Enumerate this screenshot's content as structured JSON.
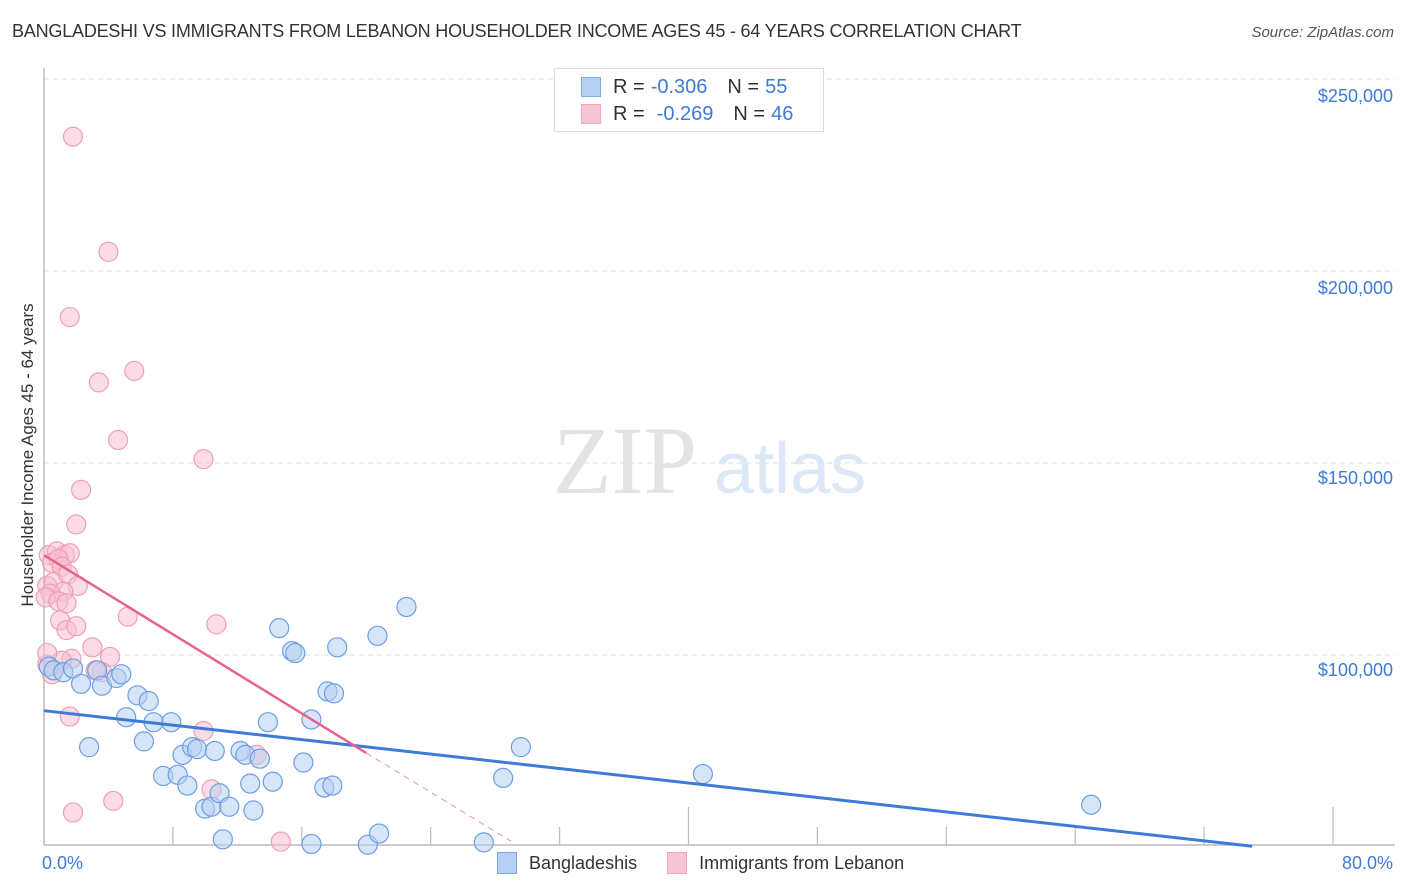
{
  "header": {
    "title": "BANGLADESHI VS IMMIGRANTS FROM LEBANON HOUSEHOLDER INCOME AGES 45 - 64 YEARS CORRELATION CHART",
    "source": "Source: ZipAtlas.com"
  },
  "watermark": {
    "zip": "ZIP",
    "atlas": "atlas"
  },
  "legend": {
    "series1": {
      "r_label": "R = ",
      "r_value": "-0.306",
      "n_label": "N = ",
      "n_value": "55"
    },
    "series2": {
      "r_label": "R = ",
      "r_value": "-0.269",
      "n_label": "N = ",
      "n_value": "46"
    }
  },
  "bottom_legend": {
    "series1": "Bangladeshis",
    "series2": "Immigrants from Lebanon"
  },
  "axes": {
    "y_label": "Householder Income Ages 45 - 64 years",
    "y_ticks": [
      "$250,000",
      "$200,000",
      "$150,000",
      "$100,000"
    ],
    "x_min_label": "0.0%",
    "x_max_label": "80.0%"
  },
  "colors": {
    "blue": "#3d7bd9",
    "blue_fill": "#b7d0f2",
    "pink": "#e8628c",
    "pink_fill": "#f7bfd0"
  },
  "chart_data": {
    "type": "scatter",
    "title": "BANGLADESHI VS IMMIGRANTS FROM LEBANON HOUSEHOLDER INCOME AGES 45 - 64 YEARS CORRELATION CHART",
    "xlabel": "",
    "ylabel": "Householder Income Ages 45 - 64 years",
    "xlim": [
      0,
      80
    ],
    "ylim": [
      50000,
      255000
    ],
    "x_unit": "%",
    "grid": true,
    "legend_position": "top-center",
    "series": [
      {
        "name": "Bangladeshis",
        "color": "#3d7bd9",
        "r": -0.306,
        "n": 55,
        "trend": {
          "x0": 0,
          "y0": 85500,
          "x1": 75,
          "y1": 50200
        },
        "points": [
          [
            0.3,
            97000
          ],
          [
            0.6,
            96000
          ],
          [
            1.2,
            95500
          ],
          [
            1.8,
            96500
          ],
          [
            2.3,
            92500
          ],
          [
            2.8,
            76000
          ],
          [
            3.3,
            96000
          ],
          [
            3.6,
            92000
          ],
          [
            4.5,
            94000
          ],
          [
            4.8,
            95000
          ],
          [
            5.1,
            83800
          ],
          [
            5.8,
            89500
          ],
          [
            6.2,
            77500
          ],
          [
            6.5,
            88000
          ],
          [
            6.8,
            82500
          ],
          [
            7.4,
            68500
          ],
          [
            7.9,
            82500
          ],
          [
            8.3,
            68800
          ],
          [
            8.6,
            74000
          ],
          [
            8.9,
            66000
          ],
          [
            9.2,
            76000
          ],
          [
            9.5,
            75500
          ],
          [
            10.0,
            60000
          ],
          [
            10.4,
            60500
          ],
          [
            10.6,
            75000
          ],
          [
            10.9,
            64000
          ],
          [
            11.1,
            52000
          ],
          [
            11.5,
            60500
          ],
          [
            12.2,
            75000
          ],
          [
            12.5,
            74000
          ],
          [
            12.8,
            66500
          ],
          [
            13.0,
            59500
          ],
          [
            13.4,
            73000
          ],
          [
            13.9,
            82500
          ],
          [
            14.2,
            67000
          ],
          [
            14.6,
            107000
          ],
          [
            15.4,
            101000
          ],
          [
            15.6,
            100500
          ],
          [
            16.1,
            72000
          ],
          [
            16.6,
            83200
          ],
          [
            17.4,
            65500
          ],
          [
            17.6,
            90500
          ],
          [
            17.9,
            66000
          ],
          [
            18.0,
            90000
          ],
          [
            18.2,
            102000
          ],
          [
            16.6,
            50800
          ],
          [
            20.1,
            50600
          ],
          [
            20.7,
            105000
          ],
          [
            20.8,
            53500
          ],
          [
            22.5,
            112500
          ],
          [
            27.3,
            51200
          ],
          [
            29.6,
            76000
          ],
          [
            28.5,
            68000
          ],
          [
            40.9,
            69000
          ],
          [
            65.0,
            61000
          ]
        ]
      },
      {
        "name": "Immigrants from Lebanon",
        "color": "#e8628c",
        "r": -0.269,
        "n": 46,
        "trend": {
          "x0": 0,
          "y0": 126000,
          "x1": 20,
          "y1": 74500,
          "dashed_to": {
            "x": 29,
            "y": 51500
          }
        },
        "points": [
          [
            1.8,
            235000
          ],
          [
            4.0,
            205000
          ],
          [
            1.6,
            188000
          ],
          [
            3.4,
            171000
          ],
          [
            5.6,
            174000
          ],
          [
            4.6,
            156000
          ],
          [
            9.9,
            151000
          ],
          [
            2.3,
            143000
          ],
          [
            2.0,
            134000
          ],
          [
            0.3,
            126000
          ],
          [
            0.8,
            127000
          ],
          [
            1.3,
            126000
          ],
          [
            1.6,
            126500
          ],
          [
            0.5,
            124000
          ],
          [
            0.9,
            125000
          ],
          [
            1.1,
            123000
          ],
          [
            0.2,
            118000
          ],
          [
            0.6,
            119000
          ],
          [
            1.5,
            121000
          ],
          [
            2.1,
            118000
          ],
          [
            1.2,
            116500
          ],
          [
            0.4,
            116000
          ],
          [
            0.1,
            115000
          ],
          [
            0.9,
            114000
          ],
          [
            1.4,
            113500
          ],
          [
            1.0,
            109000
          ],
          [
            1.4,
            106500
          ],
          [
            2.0,
            107500
          ],
          [
            5.2,
            110000
          ],
          [
            10.7,
            108000
          ],
          [
            1.7,
            99000
          ],
          [
            0.2,
            97500
          ],
          [
            1.1,
            98500
          ],
          [
            0.5,
            95000
          ],
          [
            3.0,
            102000
          ],
          [
            4.1,
            99500
          ],
          [
            3.6,
            95500
          ],
          [
            3.2,
            96000
          ],
          [
            1.6,
            84000
          ],
          [
            9.9,
            80200
          ],
          [
            10.4,
            65000
          ],
          [
            13.2,
            74000
          ],
          [
            1.8,
            59000
          ],
          [
            4.3,
            62000
          ],
          [
            14.7,
            51400
          ],
          [
            0.2,
            100500
          ]
        ]
      }
    ]
  }
}
